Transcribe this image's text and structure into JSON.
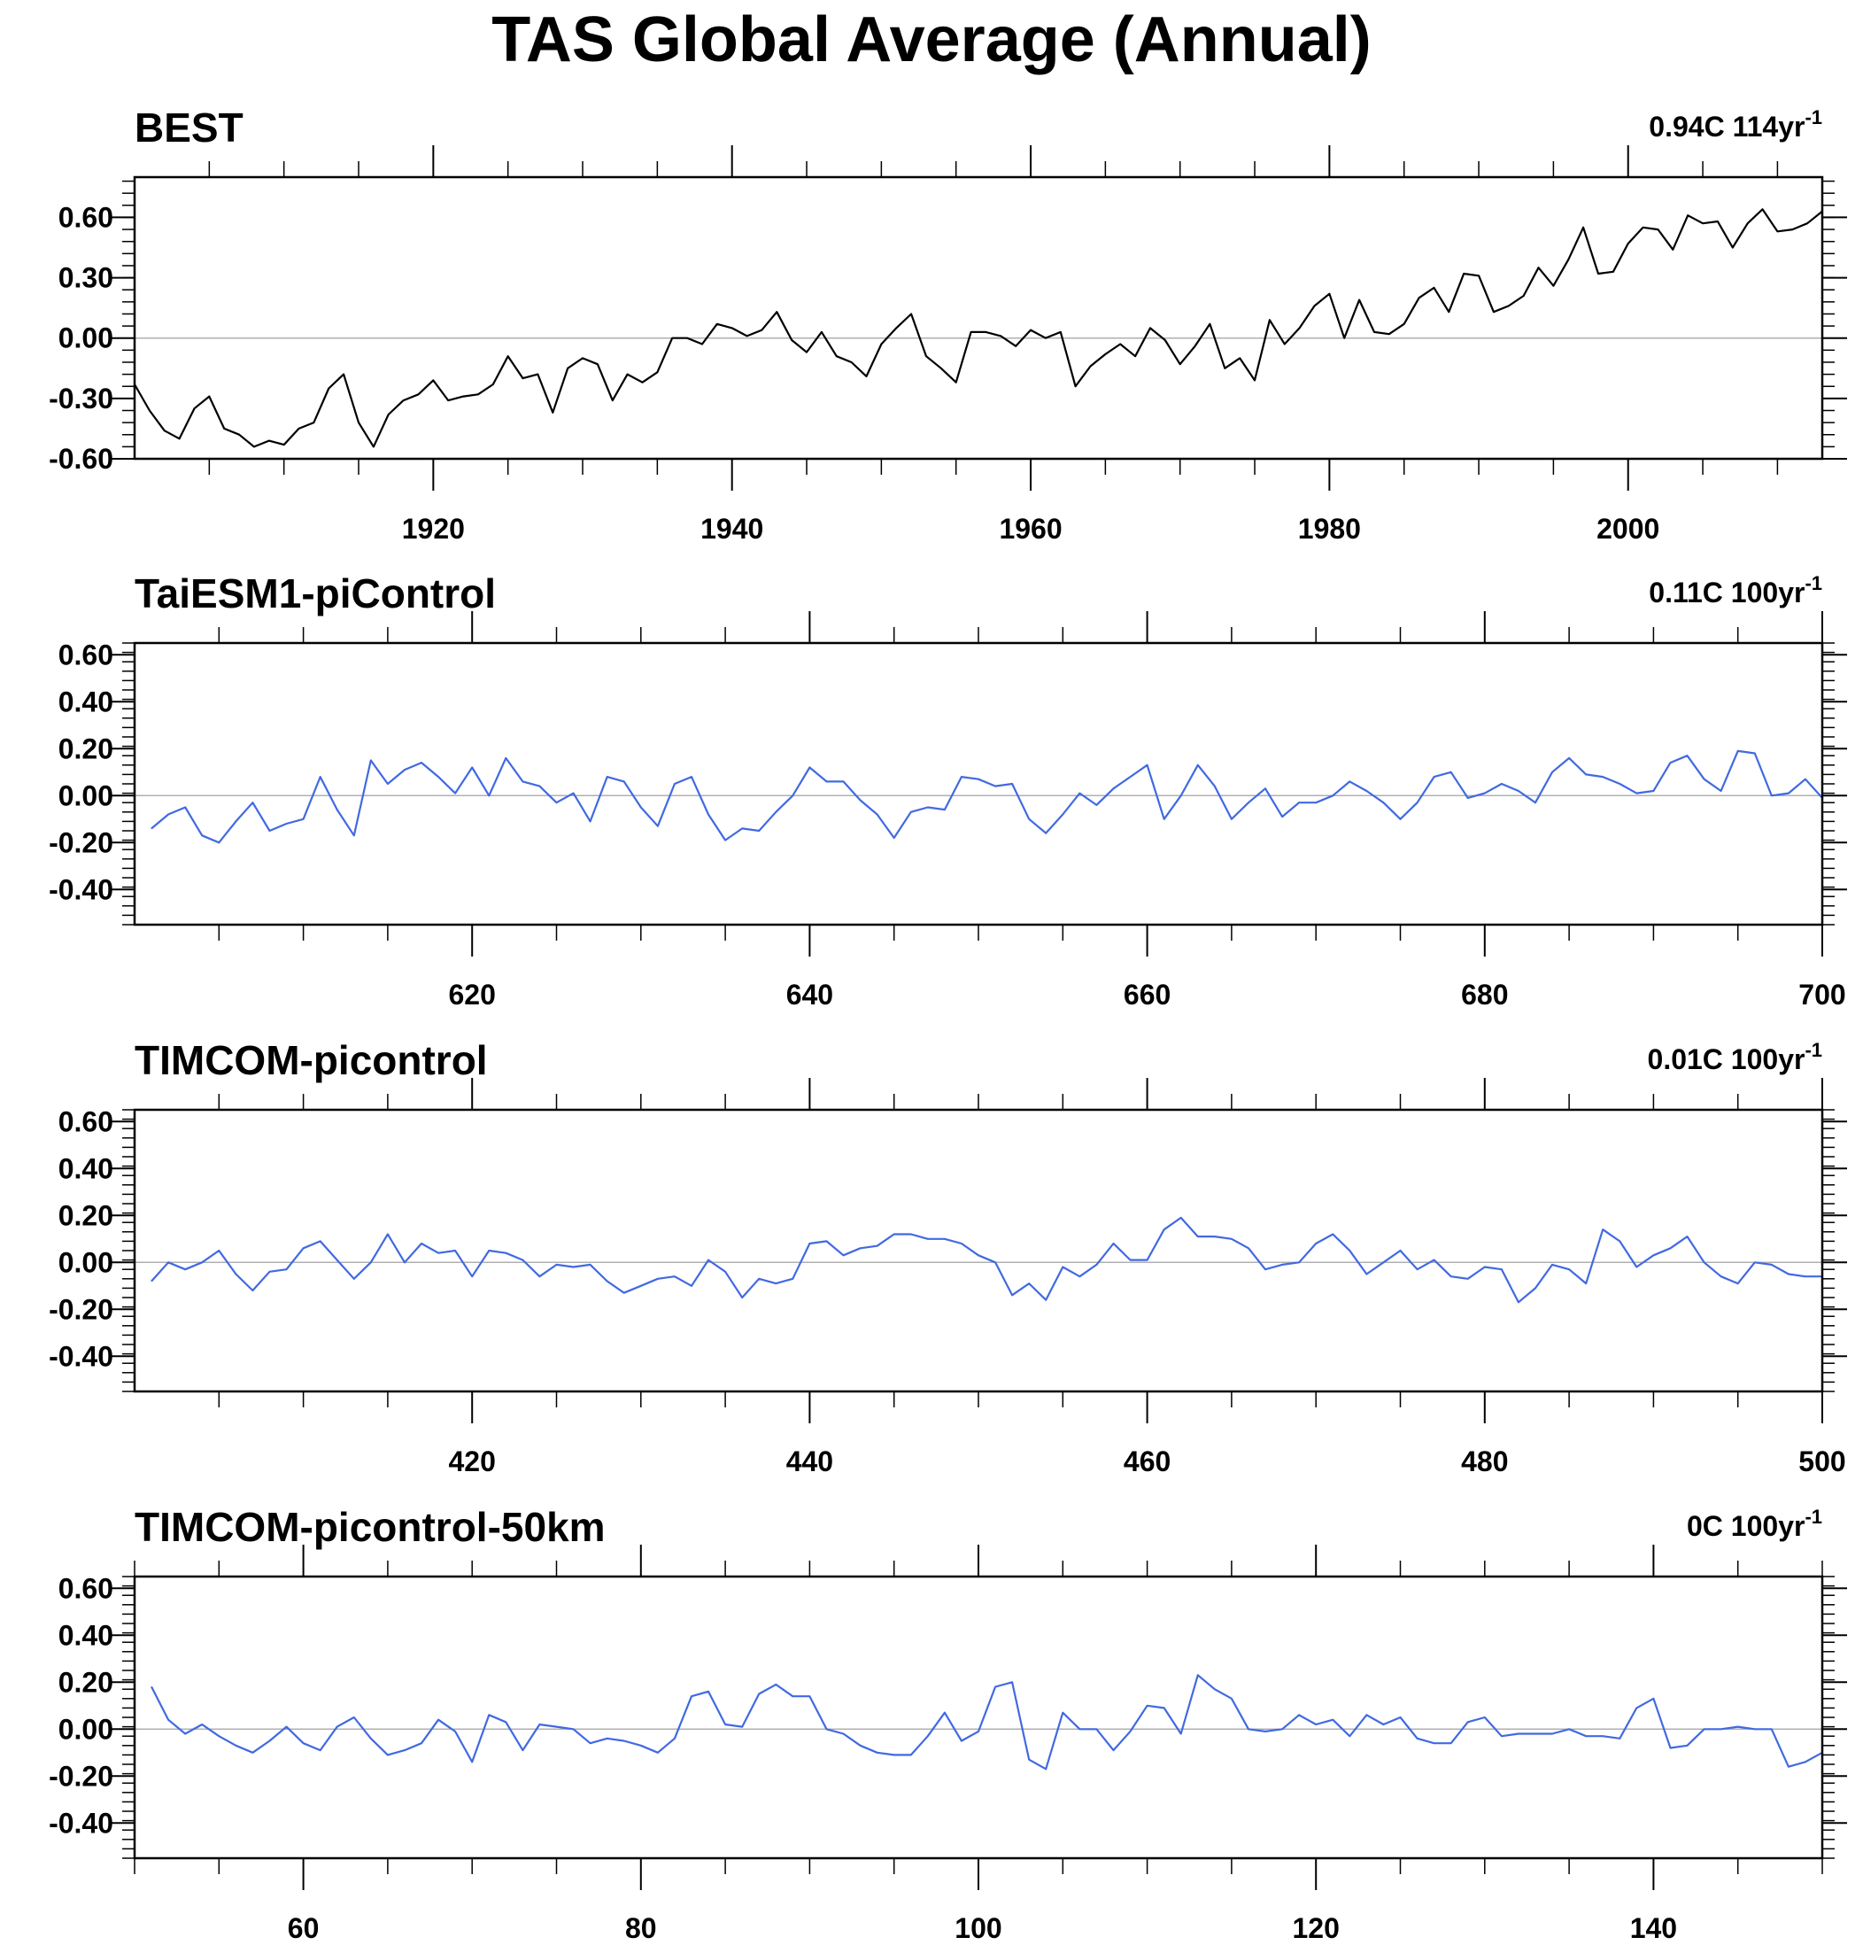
{
  "title": "TAS Global Average (Annual)",
  "chart_data": [
    {
      "type": "line",
      "title": "BEST",
      "trend_label": "0.94C 114yr",
      "trend_sup": "-1",
      "line_color": "#000000",
      "x_start": 1900,
      "x_step": 1,
      "xlim": [
        1900,
        2013
      ],
      "ylim": [
        -0.6,
        0.8
      ],
      "yticks": [
        -0.6,
        -0.3,
        0.0,
        0.3,
        0.6
      ],
      "ytick_labels": [
        "-0.60",
        "-0.30",
        "0.00",
        "0.30",
        "0.60"
      ],
      "xticks": [
        1920,
        1940,
        1960,
        1980,
        2000
      ],
      "xtick_labels": [
        "1920",
        "1940",
        "1960",
        "1980",
        "2000"
      ],
      "values": [
        -0.23,
        -0.36,
        -0.46,
        -0.5,
        -0.35,
        -0.29,
        -0.45,
        -0.48,
        -0.54,
        -0.51,
        -0.53,
        -0.45,
        -0.42,
        -0.25,
        -0.18,
        -0.42,
        -0.54,
        -0.38,
        -0.31,
        -0.28,
        -0.21,
        -0.31,
        -0.29,
        -0.28,
        -0.23,
        -0.09,
        -0.2,
        -0.18,
        -0.37,
        -0.15,
        -0.1,
        -0.13,
        -0.31,
        -0.18,
        -0.22,
        -0.17,
        0.0,
        0.0,
        -0.03,
        0.07,
        0.05,
        0.01,
        0.04,
        0.13,
        -0.01,
        -0.07,
        0.03,
        -0.09,
        -0.12,
        -0.19,
        -0.03,
        0.05,
        0.12,
        -0.09,
        -0.15,
        -0.22,
        0.03,
        0.03,
        0.01,
        -0.04,
        0.04,
        0.0,
        0.03,
        -0.24,
        -0.14,
        -0.08,
        -0.03,
        -0.09,
        0.05,
        -0.01,
        -0.13,
        -0.04,
        0.07,
        -0.15,
        -0.1,
        -0.21,
        0.09,
        -0.03,
        0.05,
        0.16,
        0.22,
        0.0,
        0.19,
        0.03,
        0.02,
        0.07,
        0.2,
        0.25,
        0.13,
        0.32,
        0.31,
        0.13,
        0.16,
        0.21,
        0.35,
        0.26,
        0.39,
        0.55,
        0.32,
        0.33,
        0.47,
        0.55,
        0.54,
        0.44,
        0.61,
        0.57,
        0.58,
        0.45,
        0.57,
        0.64,
        0.53,
        0.54,
        0.57,
        0.63
      ]
    },
    {
      "type": "line",
      "title": "TaiESM1-piControl",
      "trend_label": "0.11C 100yr",
      "trend_sup": "-1",
      "line_color": "#4169E1",
      "x_start": 601,
      "x_step": 1,
      "xlim": [
        600,
        700
      ],
      "ylim": [
        -0.55,
        0.65
      ],
      "yticks": [
        -0.4,
        -0.2,
        0.0,
        0.2,
        0.4,
        0.6
      ],
      "ytick_labels": [
        "-0.40",
        "-0.20",
        "0.00",
        "0.20",
        "0.40",
        "0.60"
      ],
      "xticks": [
        620,
        640,
        660,
        680,
        700
      ],
      "xtick_labels": [
        "620",
        "640",
        "660",
        "680",
        "700"
      ],
      "values": [
        -0.14,
        -0.08,
        -0.05,
        -0.17,
        -0.2,
        -0.11,
        -0.03,
        -0.15,
        -0.12,
        -0.1,
        0.08,
        -0.06,
        -0.17,
        0.15,
        0.05,
        0.11,
        0.14,
        0.08,
        0.01,
        0.12,
        0.0,
        0.16,
        0.06,
        0.04,
        -0.03,
        0.01,
        -0.11,
        0.08,
        0.06,
        -0.05,
        -0.13,
        0.05,
        0.08,
        -0.08,
        -0.19,
        -0.14,
        -0.15,
        -0.07,
        0.0,
        0.12,
        0.06,
        0.06,
        -0.02,
        -0.08,
        -0.18,
        -0.07,
        -0.05,
        -0.06,
        0.08,
        0.07,
        0.04,
        0.05,
        -0.1,
        -0.16,
        -0.08,
        0.01,
        -0.04,
        0.03,
        0.08,
        0.13,
        -0.1,
        0.0,
        0.13,
        0.04,
        -0.1,
        -0.03,
        0.03,
        -0.09,
        -0.03,
        -0.03,
        0.0,
        0.06,
        0.02,
        -0.03,
        -0.1,
        -0.03,
        0.08,
        0.1,
        -0.01,
        0.01,
        0.05,
        0.02,
        -0.03,
        0.1,
        0.16,
        0.09,
        0.08,
        0.05,
        0.01,
        0.02,
        0.14,
        0.17,
        0.07,
        0.02,
        0.19,
        0.18,
        0.0,
        0.01,
        0.07,
        -0.01
      ]
    },
    {
      "type": "line",
      "title": "TIMCOM-picontrol",
      "trend_label": "0.01C 100yr",
      "trend_sup": "-1",
      "line_color": "#4169E1",
      "x_start": 401,
      "x_step": 1,
      "xlim": [
        400,
        500
      ],
      "ylim": [
        -0.55,
        0.65
      ],
      "yticks": [
        -0.4,
        -0.2,
        0.0,
        0.2,
        0.4,
        0.6
      ],
      "ytick_labels": [
        "-0.40",
        "-0.20",
        "0.00",
        "0.20",
        "0.40",
        "0.60"
      ],
      "xticks": [
        420,
        440,
        460,
        480,
        500
      ],
      "xtick_labels": [
        "420",
        "440",
        "460",
        "480",
        "500"
      ],
      "values": [
        -0.08,
        0.0,
        -0.03,
        0.0,
        0.05,
        -0.05,
        -0.12,
        -0.04,
        -0.03,
        0.06,
        0.09,
        0.01,
        -0.07,
        0.0,
        0.12,
        0.0,
        0.08,
        0.04,
        0.05,
        -0.06,
        0.05,
        0.04,
        0.01,
        -0.06,
        -0.01,
        -0.02,
        -0.01,
        -0.08,
        -0.13,
        -0.1,
        -0.07,
        -0.06,
        -0.1,
        0.01,
        -0.04,
        -0.15,
        -0.07,
        -0.09,
        -0.07,
        0.08,
        0.09,
        0.03,
        0.06,
        0.07,
        0.12,
        0.12,
        0.1,
        0.1,
        0.08,
        0.03,
        0.0,
        -0.14,
        -0.09,
        -0.16,
        -0.02,
        -0.06,
        -0.01,
        0.08,
        0.01,
        0.01,
        0.14,
        0.19,
        0.11,
        0.11,
        0.1,
        0.06,
        -0.03,
        -0.01,
        0.0,
        0.08,
        0.12,
        0.05,
        -0.05,
        0.0,
        0.05,
        -0.03,
        0.01,
        -0.06,
        -0.07,
        -0.02,
        -0.03,
        -0.17,
        -0.11,
        -0.01,
        -0.03,
        -0.09,
        0.14,
        0.09,
        -0.02,
        0.03,
        0.06,
        0.11,
        0.0,
        -0.06,
        -0.09,
        0.0,
        -0.01,
        -0.05,
        -0.06,
        -0.06
      ]
    },
    {
      "type": "line",
      "title": "TIMCOM-picontrol-50km",
      "trend_label": "0C 100yr",
      "trend_sup": "-1",
      "line_color": "#4169E1",
      "x_start": 51,
      "x_step": 1,
      "xlim": [
        50,
        150
      ],
      "ylim": [
        -0.55,
        0.65
      ],
      "yticks": [
        -0.4,
        -0.2,
        0.0,
        0.2,
        0.4,
        0.6
      ],
      "ytick_labels": [
        "-0.40",
        "-0.20",
        "0.00",
        "0.20",
        "0.40",
        "0.60"
      ],
      "xticks": [
        60,
        80,
        100,
        120,
        140
      ],
      "xtick_labels": [
        "60",
        "80",
        "100",
        "120",
        "140"
      ],
      "values": [
        0.18,
        0.04,
        -0.02,
        0.02,
        -0.03,
        -0.07,
        -0.1,
        -0.05,
        0.01,
        -0.06,
        -0.09,
        0.01,
        0.05,
        -0.04,
        -0.11,
        -0.09,
        -0.06,
        0.04,
        -0.01,
        -0.14,
        0.06,
        0.03,
        -0.09,
        0.02,
        0.01,
        0.0,
        -0.06,
        -0.04,
        -0.05,
        -0.07,
        -0.1,
        -0.04,
        0.14,
        0.16,
        0.02,
        0.01,
        0.15,
        0.19,
        0.14,
        0.14,
        0.0,
        -0.02,
        -0.07,
        -0.1,
        -0.11,
        -0.11,
        -0.03,
        0.07,
        -0.05,
        -0.01,
        0.18,
        0.2,
        -0.13,
        -0.17,
        0.07,
        0.0,
        0.0,
        -0.09,
        -0.01,
        0.1,
        0.09,
        -0.02,
        0.23,
        0.17,
        0.13,
        0.0,
        -0.01,
        0.0,
        0.06,
        0.02,
        0.04,
        -0.03,
        0.06,
        0.02,
        0.05,
        -0.04,
        -0.06,
        -0.06,
        0.03,
        0.05,
        -0.03,
        -0.02,
        -0.02,
        -0.02,
        0.0,
        -0.03,
        -0.03,
        -0.04,
        0.09,
        0.13,
        -0.08,
        -0.07,
        0.0,
        0.0,
        0.01,
        0.0,
        0.0,
        -0.16,
        -0.14,
        -0.1
      ]
    }
  ]
}
